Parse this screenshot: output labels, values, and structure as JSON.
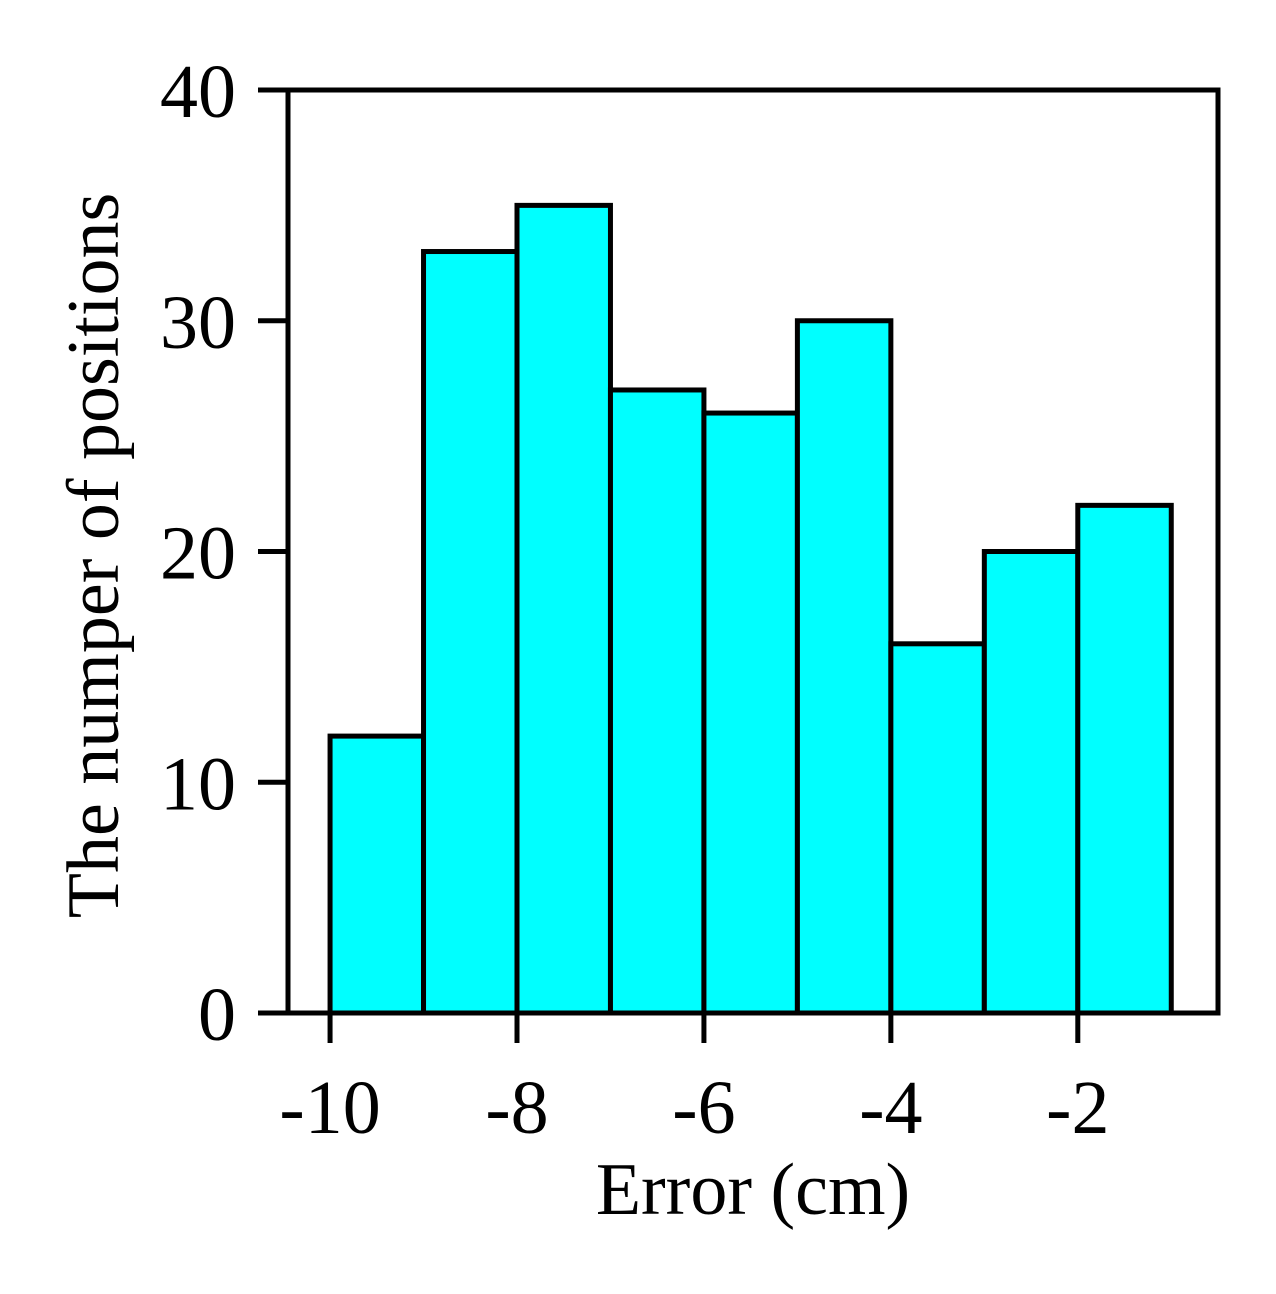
{
  "chart_data": {
    "type": "bar",
    "title": "",
    "xlabel": "Error (cm)",
    "ylabel": "The numper of positions",
    "bins": [
      {
        "x0": -10,
        "x1": -9,
        "value": 12
      },
      {
        "x0": -9,
        "x1": -8,
        "value": 33
      },
      {
        "x0": -8,
        "x1": -7,
        "value": 35
      },
      {
        "x0": -7,
        "x1": -6,
        "value": 27
      },
      {
        "x0": -6,
        "x1": -5,
        "value": 26
      },
      {
        "x0": -5,
        "x1": -4,
        "value": 30
      },
      {
        "x0": -4,
        "x1": -3,
        "value": 16
      },
      {
        "x0": -3,
        "x1": -2,
        "value": 20
      },
      {
        "x0": -2,
        "x1": -1,
        "value": 22
      }
    ],
    "xlim": [
      -10.45,
      -0.5
    ],
    "ylim": [
      0,
      40
    ],
    "xticks": [
      -10,
      -8,
      -6,
      -4,
      -2
    ],
    "xtick_labels": [
      "-10",
      "-8",
      "-6",
      "-4",
      "-2"
    ],
    "yticks": [
      0,
      10,
      20,
      30,
      40
    ],
    "ytick_labels": [
      "0",
      "10",
      "20",
      "30",
      "40"
    ],
    "bar_color": "#00ffff",
    "edge_color": "#000000",
    "grid": false,
    "legend": "none"
  }
}
